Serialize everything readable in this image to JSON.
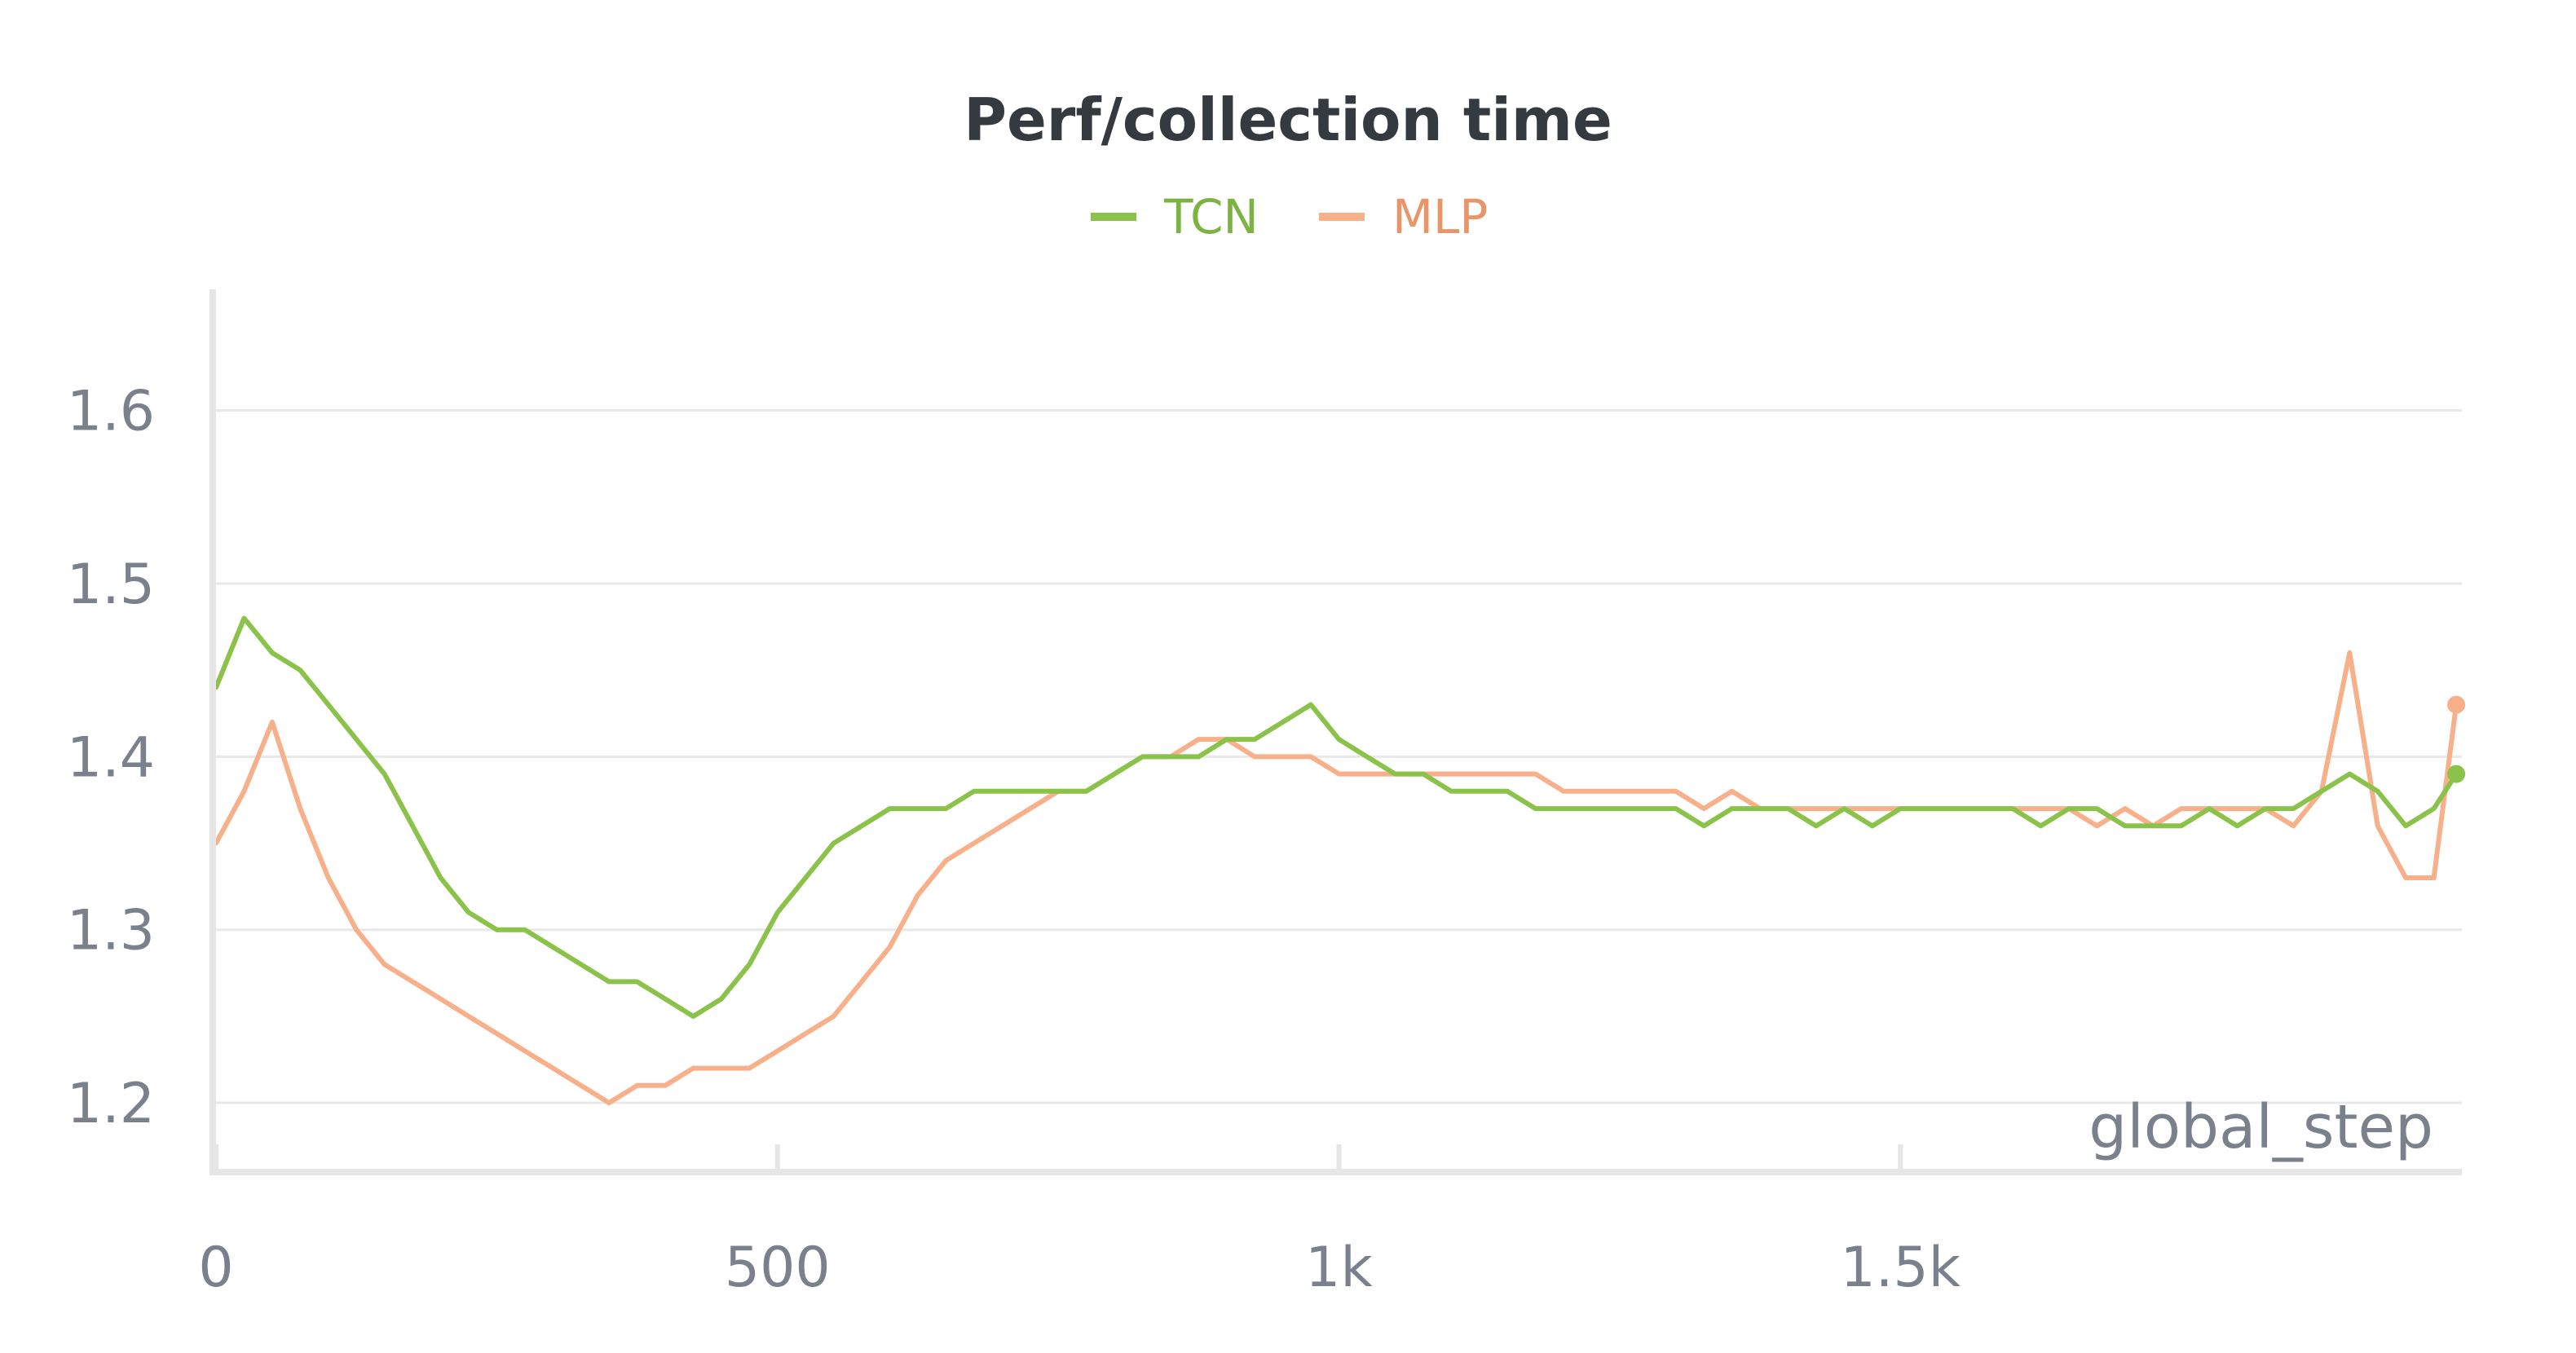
{
  "chart_data": {
    "type": "line",
    "title": "Perf/collection time",
    "xlabel": "global_step",
    "ylabel": "",
    "xlim": [
      0,
      2000
    ],
    "ylim": [
      1.16,
      1.67
    ],
    "x_ticks": [
      {
        "value": 0,
        "label": "0"
      },
      {
        "value": 500,
        "label": "500"
      },
      {
        "value": 1000,
        "label": "1k"
      },
      {
        "value": 1500,
        "label": "1.5k"
      }
    ],
    "y_ticks": [
      {
        "value": 1.2,
        "label": "1.2"
      },
      {
        "value": 1.3,
        "label": "1.3"
      },
      {
        "value": 1.4,
        "label": "1.4"
      },
      {
        "value": 1.5,
        "label": "1.5"
      },
      {
        "value": 1.6,
        "label": "1.6"
      }
    ],
    "grid": true,
    "legend_position": "top-center",
    "x": [
      0,
      25,
      50,
      75,
      100,
      125,
      150,
      175,
      200,
      225,
      250,
      275,
      300,
      325,
      350,
      375,
      400,
      425,
      450,
      475,
      500,
      525,
      550,
      575,
      600,
      625,
      650,
      675,
      700,
      725,
      750,
      775,
      800,
      825,
      850,
      875,
      900,
      925,
      950,
      975,
      1000,
      1025,
      1050,
      1075,
      1100,
      1125,
      1150,
      1175,
      1200,
      1225,
      1250,
      1275,
      1300,
      1325,
      1350,
      1375,
      1400,
      1425,
      1450,
      1475,
      1500,
      1525,
      1550,
      1575,
      1600,
      1625,
      1650,
      1675,
      1700,
      1725,
      1750,
      1775,
      1800,
      1825,
      1850,
      1875,
      1900,
      1925,
      1950,
      1975,
      1995
    ],
    "series": [
      {
        "name": "TCN",
        "color": "#8bc34a",
        "values": [
          1.44,
          1.48,
          1.46,
          1.45,
          1.43,
          1.41,
          1.39,
          1.36,
          1.33,
          1.31,
          1.3,
          1.3,
          1.29,
          1.28,
          1.27,
          1.27,
          1.26,
          1.25,
          1.26,
          1.28,
          1.31,
          1.33,
          1.35,
          1.36,
          1.37,
          1.37,
          1.37,
          1.38,
          1.38,
          1.38,
          1.38,
          1.38,
          1.39,
          1.4,
          1.4,
          1.4,
          1.41,
          1.41,
          1.42,
          1.43,
          1.41,
          1.4,
          1.39,
          1.39,
          1.38,
          1.38,
          1.38,
          1.37,
          1.37,
          1.37,
          1.37,
          1.37,
          1.37,
          1.36,
          1.37,
          1.37,
          1.37,
          1.36,
          1.37,
          1.36,
          1.37,
          1.37,
          1.37,
          1.37,
          1.37,
          1.36,
          1.37,
          1.37,
          1.36,
          1.36,
          1.36,
          1.37,
          1.36,
          1.37,
          1.37,
          1.38,
          1.39,
          1.38,
          1.36,
          1.37,
          1.39
        ]
      },
      {
        "name": "MLP",
        "color": "#f7b08a",
        "values": [
          1.35,
          1.38,
          1.42,
          1.37,
          1.33,
          1.3,
          1.28,
          1.27,
          1.26,
          1.25,
          1.24,
          1.23,
          1.22,
          1.21,
          1.2,
          1.21,
          1.21,
          1.22,
          1.22,
          1.22,
          1.23,
          1.24,
          1.25,
          1.27,
          1.29,
          1.32,
          1.34,
          1.35,
          1.36,
          1.37,
          1.38,
          1.38,
          1.39,
          1.4,
          1.4,
          1.41,
          1.41,
          1.4,
          1.4,
          1.4,
          1.39,
          1.39,
          1.39,
          1.39,
          1.39,
          1.39,
          1.39,
          1.39,
          1.38,
          1.38,
          1.38,
          1.38,
          1.38,
          1.37,
          1.38,
          1.37,
          1.37,
          1.37,
          1.37,
          1.37,
          1.37,
          1.37,
          1.37,
          1.37,
          1.37,
          1.37,
          1.37,
          1.36,
          1.37,
          1.36,
          1.37,
          1.37,
          1.37,
          1.37,
          1.36,
          1.38,
          1.46,
          1.36,
          1.33,
          1.33,
          1.43
        ]
      }
    ]
  }
}
